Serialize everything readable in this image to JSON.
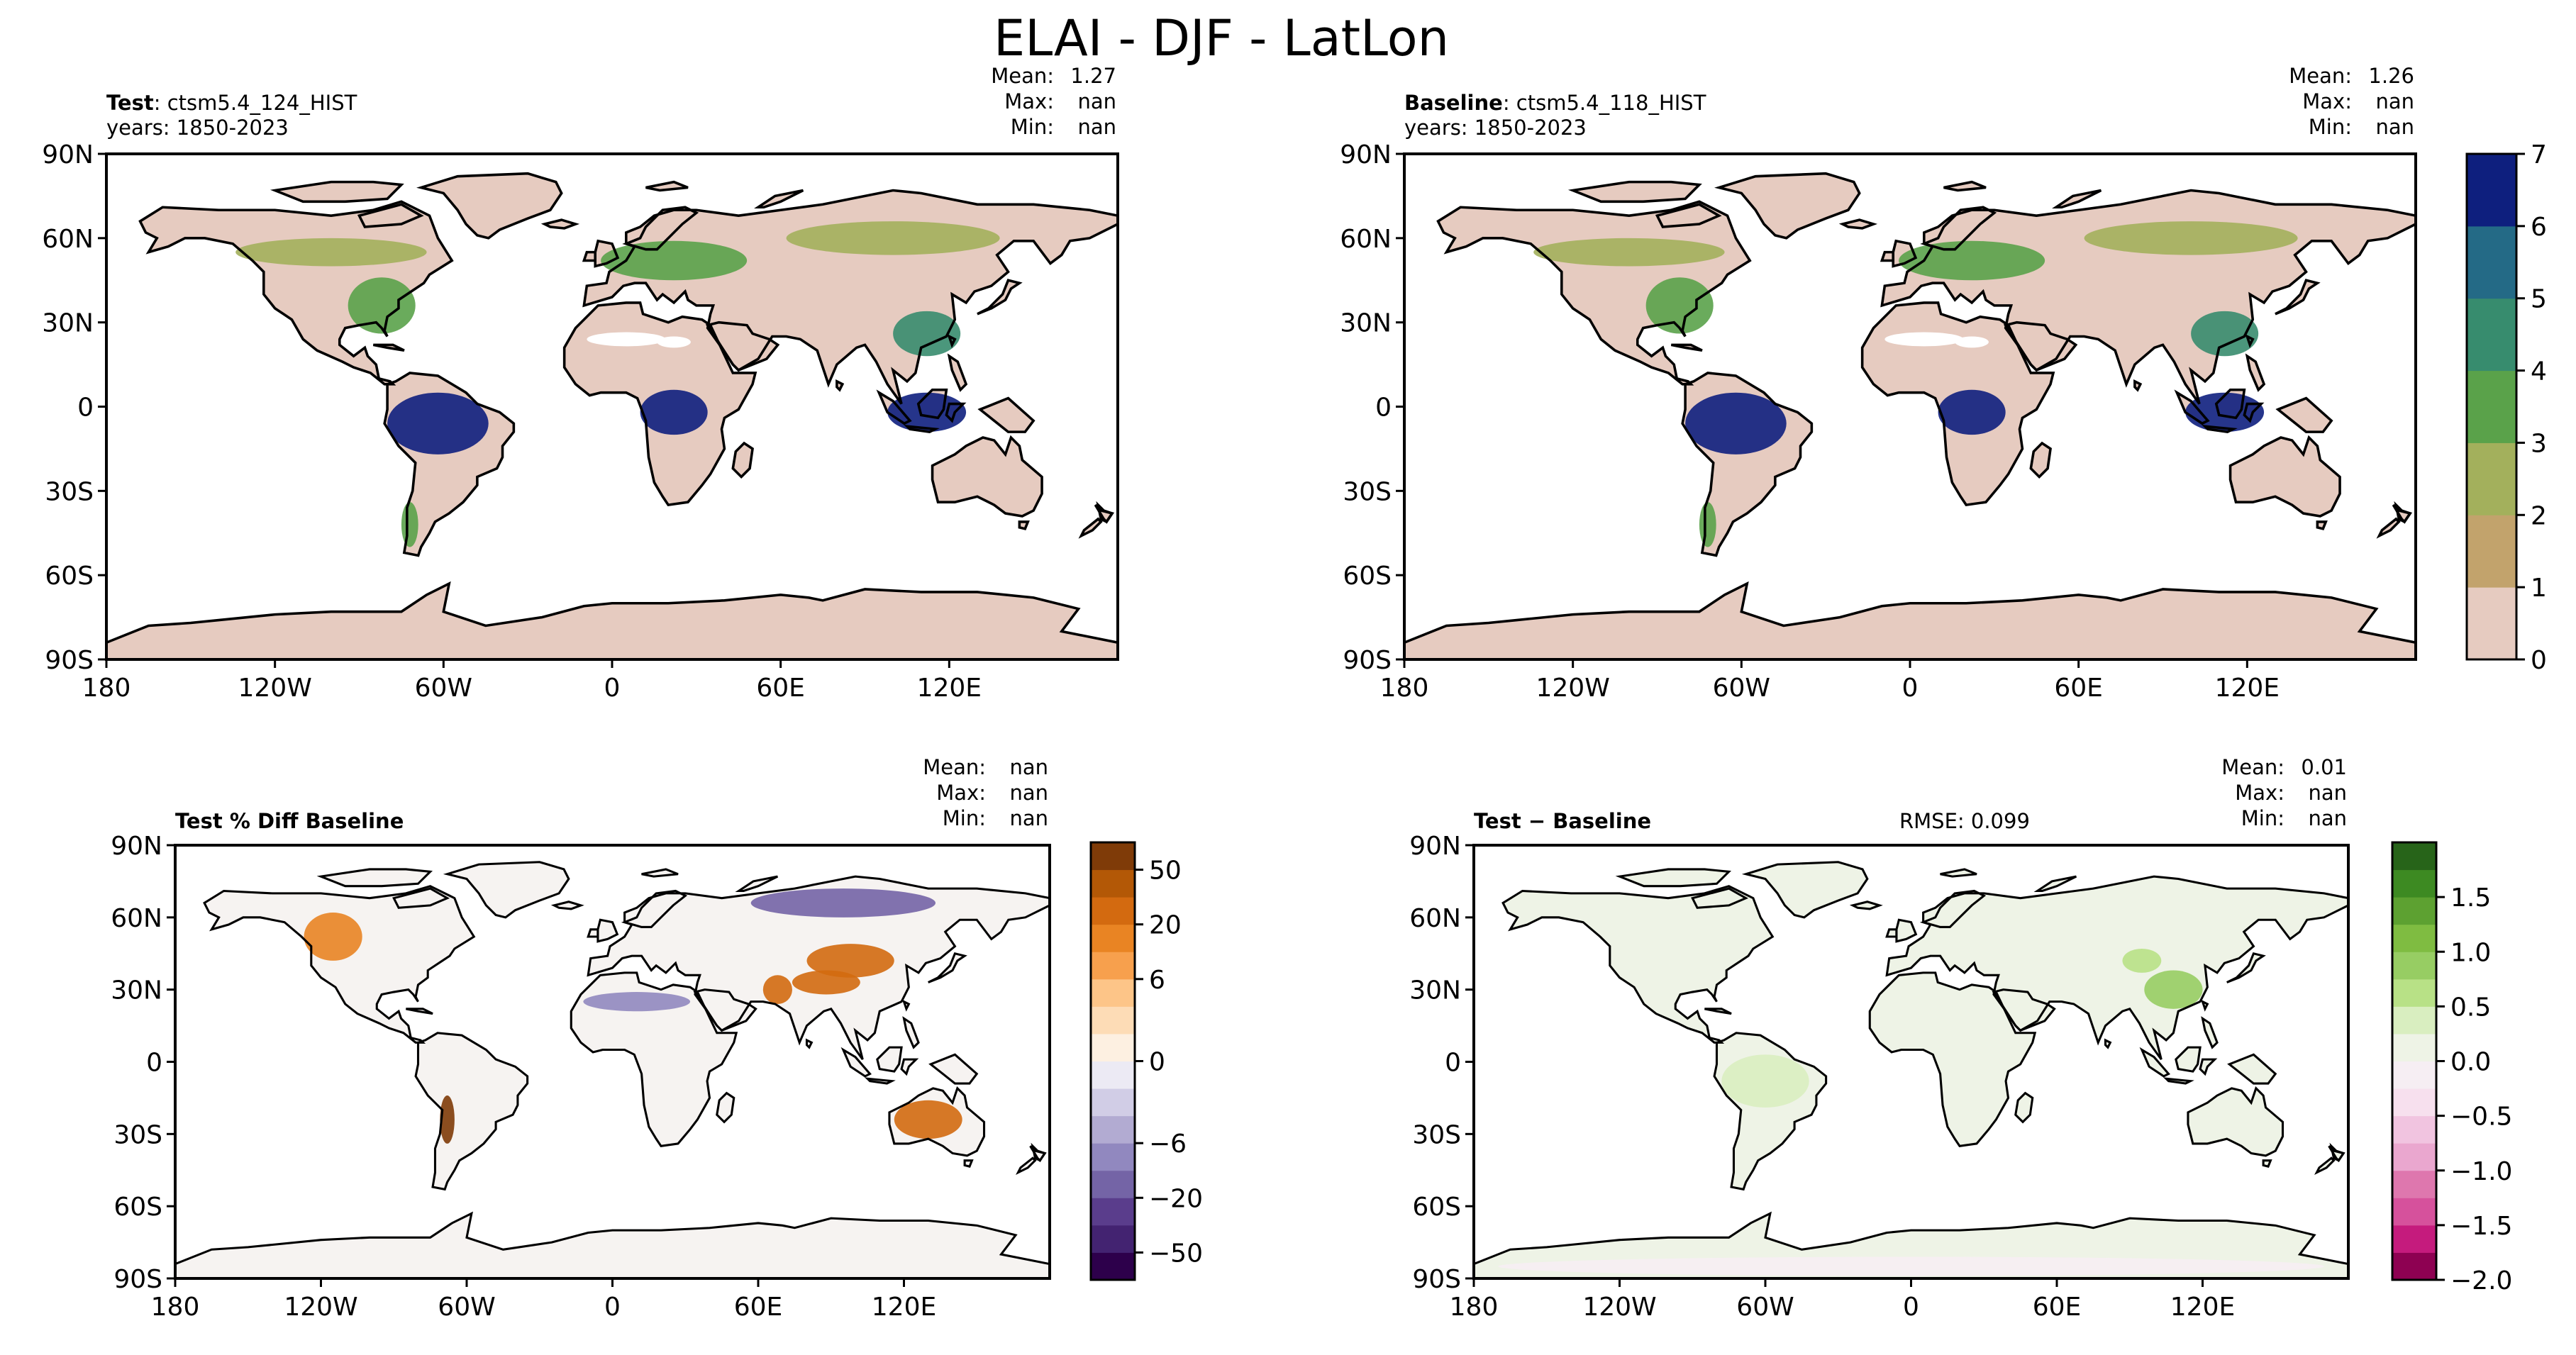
{
  "title": "ELAI - DJF - LatLon",
  "colors": {
    "land": "#e6cbc0",
    "coast": "#000000"
  },
  "panels": [
    {
      "id": "test",
      "label_bold": "Test",
      "label_rest": ": ctsm5.4_124_HIST",
      "years": "years: 1850-2023",
      "stats": [
        {
          "label": "Mean:",
          "value": "1.27"
        },
        {
          "label": "Max:",
          "value": "nan"
        },
        {
          "label": "Min:",
          "value": "nan"
        }
      ]
    },
    {
      "id": "baseline",
      "label_bold": "Baseline",
      "label_rest": ": ctsm5.4_118_HIST",
      "years": "years: 1850-2023",
      "stats": [
        {
          "label": "Mean:",
          "value": "1.26"
        },
        {
          "label": "Max:",
          "value": "nan"
        },
        {
          "label": "Min:",
          "value": "nan"
        }
      ]
    },
    {
      "id": "pctdiff",
      "label_bold": "Test % Diff Baseline",
      "label_rest": "",
      "years": "",
      "stats": [
        {
          "label": "Mean:",
          "value": "nan"
        },
        {
          "label": "Max:",
          "value": "nan"
        },
        {
          "label": "Min:",
          "value": "nan"
        }
      ]
    },
    {
      "id": "diff",
      "label_bold": "Test − Baseline",
      "label_rest": "",
      "years": "",
      "rmse": "RMSE: 0.099",
      "stats": [
        {
          "label": "Mean:",
          "value": "0.01"
        },
        {
          "label": "Max:",
          "value": "nan"
        },
        {
          "label": "Min:",
          "value": "nan"
        }
      ]
    }
  ],
  "chart_data": [
    {
      "type": "heatmap",
      "title": "Test: ctsm5.4_124_HIST",
      "projection": "PlateCarree",
      "xlim": [
        -180,
        180
      ],
      "ylim": [
        -90,
        90
      ],
      "x_ticks": [
        -180,
        -120,
        -60,
        0,
        60,
        120
      ],
      "x_tick_labels": [
        "180",
        "120W",
        "60W",
        "0",
        "60E",
        "120E"
      ],
      "y_ticks": [
        90,
        60,
        30,
        0,
        -30,
        -60,
        -90
      ],
      "y_tick_labels": [
        "90N",
        "60N",
        "30N",
        "0",
        "30S",
        "60S",
        "90S"
      ],
      "colorbar": {
        "levels": [
          0,
          1,
          2,
          3,
          4,
          5,
          6,
          7
        ],
        "tick_labels": [
          "0",
          "1",
          "2",
          "3",
          "4",
          "5",
          "6",
          "7"
        ],
        "colors": [
          "#e6cbc0",
          "#c2a36c",
          "#a3b05c",
          "#5aa24a",
          "#378c6e",
          "#246a86",
          "#0e1f7e"
        ]
      },
      "highlights": [
        {
          "region": "amazon",
          "lon": -62,
          "lat": -6,
          "value": 6.5
        },
        {
          "region": "congo",
          "lon": 22,
          "lat": -2,
          "value": 6.0
        },
        {
          "region": "indonesia",
          "lon": 112,
          "lat": -2,
          "value": 6.0
        },
        {
          "region": "eastern-usa",
          "lon": -82,
          "lat": 36,
          "value": 3.5
        },
        {
          "region": "south-china",
          "lon": 112,
          "lat": 26,
          "value": 4.0
        },
        {
          "region": "europe",
          "lon": 22,
          "lat": 52,
          "value": 3.0
        },
        {
          "region": "siberia",
          "lon": 100,
          "lat": 60,
          "value": 2.5
        },
        {
          "region": "canada",
          "lon": -100,
          "lat": 55,
          "value": 2.5
        },
        {
          "region": "chile",
          "lon": -72,
          "lat": -42,
          "value": 3.0
        }
      ]
    },
    {
      "type": "heatmap",
      "title": "Baseline: ctsm5.4_118_HIST",
      "projection": "PlateCarree",
      "xlim": [
        -180,
        180
      ],
      "ylim": [
        -90,
        90
      ],
      "x_ticks": [
        -180,
        -120,
        -60,
        0,
        60,
        120
      ],
      "x_tick_labels": [
        "180",
        "120W",
        "60W",
        "0",
        "60E",
        "120E"
      ],
      "y_ticks": [
        90,
        60,
        30,
        0,
        -30,
        -60,
        -90
      ],
      "y_tick_labels": [
        "90N",
        "60N",
        "30N",
        "0",
        "30S",
        "60S",
        "90S"
      ],
      "colorbar": "shared with Test panel (0-7)",
      "highlights": [
        {
          "region": "amazon",
          "lon": -62,
          "lat": -6,
          "value": 6.5
        },
        {
          "region": "congo",
          "lon": 22,
          "lat": -2,
          "value": 6.0
        },
        {
          "region": "indonesia",
          "lon": 112,
          "lat": -2,
          "value": 6.0
        },
        {
          "region": "eastern-usa",
          "lon": -82,
          "lat": 36,
          "value": 3.5
        },
        {
          "region": "south-china",
          "lon": 112,
          "lat": 26,
          "value": 4.0
        },
        {
          "region": "europe",
          "lon": 22,
          "lat": 52,
          "value": 3.0
        },
        {
          "region": "siberia",
          "lon": 100,
          "lat": 60,
          "value": 2.5
        },
        {
          "region": "canada",
          "lon": -100,
          "lat": 55,
          "value": 2.5
        },
        {
          "region": "chile",
          "lon": -72,
          "lat": -42,
          "value": 3.0
        }
      ]
    },
    {
      "type": "heatmap",
      "title": "Test % Diff Baseline",
      "projection": "PlateCarree",
      "xlim": [
        -180,
        180
      ],
      "ylim": [
        -90,
        90
      ],
      "x_ticks": [
        -180,
        -120,
        -60,
        0,
        60,
        120
      ],
      "x_tick_labels": [
        "180",
        "120W",
        "60W",
        "0",
        "60E",
        "120E"
      ],
      "y_ticks": [
        90,
        60,
        30,
        0,
        -30,
        -60,
        -90
      ],
      "y_tick_labels": [
        "90N",
        "60N",
        "30N",
        "0",
        "30S",
        "60S",
        "90S"
      ],
      "colorbar": {
        "levels": [
          -70,
          -50,
          -35,
          -20,
          -12,
          -6,
          -3,
          -1,
          0,
          1,
          3,
          6,
          12,
          20,
          35,
          50,
          70
        ],
        "tick_values": [
          -50,
          -20,
          -6,
          0,
          6,
          20,
          50
        ],
        "tick_labels": [
          "−50",
          "−20",
          "−6",
          "0",
          "6",
          "20",
          "50"
        ],
        "colors": [
          "#2d004b",
          "#432371",
          "#5a3d8c",
          "#7464a6",
          "#9188bf",
          "#b2abd2",
          "#d1cde6",
          "#eceaf4",
          "#fdf0e1",
          "#fddcb6",
          "#fdc588",
          "#f7a04d",
          "#e98423",
          "#d36a10",
          "#b35806",
          "#7f3b08"
        ]
      },
      "highlights": [
        {
          "region": "mongolia",
          "lon": 98,
          "lat": 42,
          "value": 30
        },
        {
          "region": "tibet",
          "lon": 88,
          "lat": 33,
          "value": 25
        },
        {
          "region": "pakistan",
          "lon": 68,
          "lat": 30,
          "value": 20
        },
        {
          "region": "australia-interior",
          "lon": 130,
          "lat": -24,
          "value": 20
        },
        {
          "region": "canada-west",
          "lon": -115,
          "lat": 52,
          "value": 12
        },
        {
          "region": "andes",
          "lon": -68,
          "lat": -24,
          "value": 55
        },
        {
          "region": "siberia",
          "lon": 95,
          "lat": 66,
          "value": -20
        },
        {
          "region": "sahara",
          "lon": 10,
          "lat": 25,
          "value": -12
        }
      ]
    },
    {
      "type": "heatmap",
      "title": "Test − Baseline",
      "projection": "PlateCarree",
      "xlim": [
        -180,
        180
      ],
      "ylim": [
        -90,
        90
      ],
      "x_ticks": [
        -180,
        -120,
        -60,
        0,
        60,
        120
      ],
      "x_tick_labels": [
        "180",
        "120W",
        "60W",
        "0",
        "60E",
        "120E"
      ],
      "y_ticks": [
        90,
        60,
        30,
        0,
        -30,
        -60,
        -90
      ],
      "y_tick_labels": [
        "90N",
        "60N",
        "30N",
        "0",
        "30S",
        "60S",
        "90S"
      ],
      "colorbar": {
        "levels": [
          -2.0,
          -1.75,
          -1.5,
          -1.25,
          -1.0,
          -0.75,
          -0.5,
          -0.25,
          0.0,
          0.25,
          0.5,
          0.75,
          1.0,
          1.25,
          1.5,
          1.75
        ],
        "tick_values": [
          -2.0,
          -1.5,
          -1.0,
          -0.5,
          0.0,
          0.5,
          1.0,
          1.5
        ],
        "tick_labels": [
          "−2.0",
          "−1.5",
          "−1.0",
          "−0.5",
          "0.0",
          "0.5",
          "1.0",
          "1.5"
        ],
        "colors": [
          "#8e0152",
          "#c51b7d",
          "#d6519c",
          "#de77ae",
          "#eaa7cf",
          "#f1c4e0",
          "#f7e0ee",
          "#f6eef3",
          "#eef3e6",
          "#d9eec0",
          "#b8e186",
          "#97cd63",
          "#7fbc41",
          "#5da131",
          "#3d8a22",
          "#276419"
        ]
      },
      "highlights": [
        {
          "region": "south-china",
          "lon": 108,
          "lat": 30,
          "value": 0.8
        },
        {
          "region": "central-asia",
          "lon": 95,
          "lat": 42,
          "value": 0.6
        },
        {
          "region": "amazon",
          "lon": -60,
          "lat": -8,
          "value": 0.3
        },
        {
          "region": "antarctica",
          "lon": 0,
          "lat": -85,
          "value": -0.1
        }
      ]
    }
  ]
}
